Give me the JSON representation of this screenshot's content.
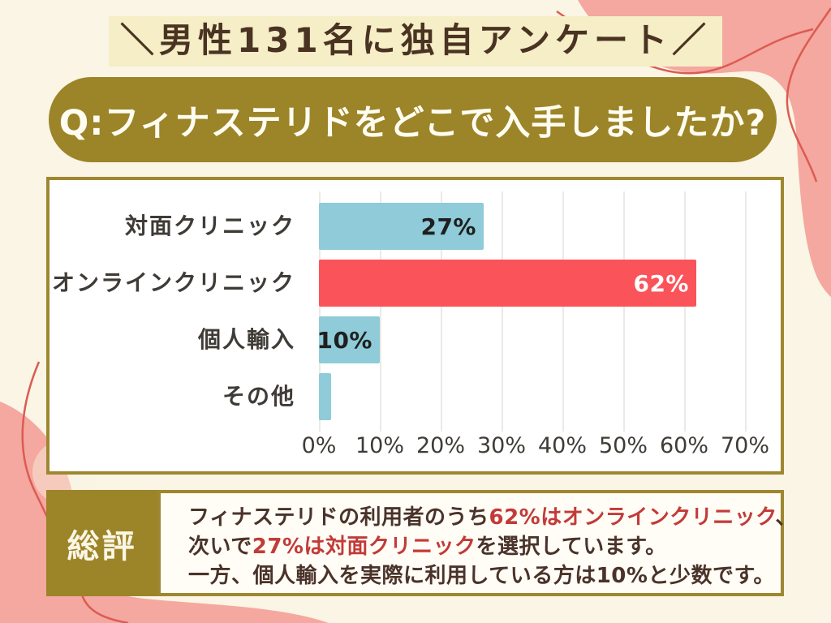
{
  "header": {
    "banner": "＼男性131名に独自アンケート／",
    "question": "Q:フィナステリドをどこで入手しましたか?"
  },
  "chart_data": {
    "type": "bar",
    "orientation": "horizontal",
    "title": "",
    "categories": [
      "対面クリニック",
      "オンラインクリニック",
      "個人輸入",
      "その他"
    ],
    "values": [
      27,
      62,
      10,
      2
    ],
    "value_labels": [
      "27%",
      "62%",
      "10%",
      ""
    ],
    "bar_colors": [
      "#8FCBD8",
      "#FB535A",
      "#8FCBD8",
      "#8FCBD8"
    ],
    "value_label_colors": [
      "#1F1F1F",
      "#FFFFFF",
      "#1F1F1F",
      "#1F1F1F"
    ],
    "x_ticks": [
      "0%",
      "10%",
      "20%",
      "30%",
      "40%",
      "50%",
      "60%",
      "70%"
    ],
    "xlim": [
      0,
      70
    ],
    "grid": true,
    "legend": false
  },
  "summary": {
    "heading": "総評",
    "lines": [
      [
        {
          "text": "フィナステリドの利用者のうち",
          "style": "dark"
        },
        {
          "text": "62%はオンラインクリニック",
          "style": "red"
        },
        {
          "text": "、",
          "style": "dark"
        }
      ],
      [
        {
          "text": "次いで",
          "style": "dark"
        },
        {
          "text": "27%は対面クリニック",
          "style": "red"
        },
        {
          "text": "を選択しています。",
          "style": "dark"
        }
      ],
      [
        {
          "text": "一方、個人輸入を実際に利用している方は10%と少数です。",
          "style": "dark"
        }
      ]
    ]
  },
  "colors": {
    "background_cream": "#FAF5E4",
    "banner_highlight": "#F5EEC6",
    "banner_text": "#4A3322",
    "olive": "#9C8428",
    "panel_border": "#9E8730",
    "bar_teal": "#8FCBD8",
    "bar_red": "#FB535A",
    "blob_pink": "#F4A89F",
    "decor_line_red": "#DC5B52",
    "summary_accent_red": "#C23B38",
    "summary_text": "#4A332A"
  }
}
